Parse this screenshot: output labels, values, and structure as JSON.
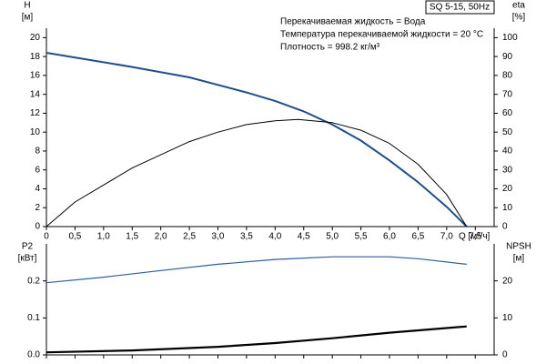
{
  "chart_data": [
    {
      "type": "line",
      "title": "SQ 5-15, 50Hz",
      "annotations": [
        "Перекачиваемая жидкость = Вода",
        "Температура перекачиваемой жидкости = 20 °C",
        "Плотность = 998.2 кг/м³"
      ],
      "ylabel": "H",
      "yunit": "[м]",
      "y2label": "eta",
      "y2unit": "[%]",
      "xlabel": "Q [м³/ч]",
      "xlim": [
        0,
        7.83
      ],
      "xticks": [
        0,
        {
          "value": 0.5,
          "label": "0,5"
        },
        {
          "value": 1,
          "label": "1,0"
        },
        {
          "value": 1.5,
          "label": "1,5"
        },
        {
          "value": 2,
          "label": "2,0"
        },
        {
          "value": 2.5,
          "label": "2,5"
        },
        {
          "value": 3,
          "label": "3,0"
        },
        {
          "value": 3.5,
          "label": "3,5"
        },
        {
          "value": 4,
          "label": "4,0"
        },
        {
          "value": 4.5,
          "label": "4,5"
        },
        {
          "value": 5,
          "label": "5,0"
        },
        {
          "value": 5.5,
          "label": "5,5"
        },
        {
          "value": 6,
          "label": "6,0"
        },
        {
          "value": 6.5,
          "label": "6,5"
        },
        {
          "value": 7,
          "label": "7,0"
        },
        {
          "value": 7.5,
          "label": "7,5"
        }
      ],
      "ylim": [
        0,
        21
      ],
      "yticks": [
        0,
        2,
        4,
        6,
        8,
        10,
        12,
        14,
        16,
        18,
        20
      ],
      "y2lim": [
        0,
        105
      ],
      "y2ticks": [
        0,
        10,
        20,
        30,
        40,
        50,
        60,
        70,
        80,
        90,
        100
      ],
      "series": [
        {
          "color": "#1f4e8c",
          "width": 2,
          "x": [
            0,
            1.5,
            2.5,
            3.5,
            4,
            4.5,
            5,
            5.5,
            6,
            6.5,
            7,
            7.35
          ],
          "values": [
            18.4,
            16.9,
            15.8,
            14.2,
            13.3,
            12.2,
            10.8,
            9.1,
            7.0,
            4.7,
            2.1,
            0
          ]
        },
        {
          "color": "#000000",
          "width": 1,
          "axis": "y2",
          "x": [
            0,
            0.5,
            1,
            1.5,
            2,
            2.5,
            3,
            3.5,
            4,
            4.4,
            5,
            5.5,
            6,
            6.5,
            7,
            7.35
          ],
          "values": [
            0,
            13,
            22,
            31,
            38,
            45,
            50,
            54,
            56,
            56.7,
            55,
            51,
            44,
            33,
            17,
            0
          ]
        }
      ]
    },
    {
      "type": "line",
      "ylabel": "P2",
      "yunit": "[кВт]",
      "y2label": "NPSH",
      "y2unit": "[м]",
      "xlim": [
        0,
        7.83
      ],
      "ylim": [
        0,
        0.3
      ],
      "yticks": [
        {
          "value": 0,
          "label": "0.0"
        },
        0.1,
        0.2
      ],
      "y2lim": [
        0,
        30
      ],
      "y2ticks": [
        0,
        10,
        20
      ],
      "series": [
        {
          "color": "#2a5fa0",
          "width": 1.2,
          "x": [
            0,
            1,
            2,
            3,
            4,
            5,
            6,
            6.5,
            7.35
          ],
          "values": [
            0.195,
            0.21,
            0.228,
            0.245,
            0.258,
            0.265,
            0.265,
            0.26,
            0.245
          ]
        },
        {
          "color": "#000000",
          "width": 2.2,
          "axis": "y2",
          "x": [
            0,
            1.5,
            3,
            4,
            5,
            6,
            7.35
          ],
          "values": [
            0.7,
            1.2,
            2.2,
            3.2,
            4.5,
            6.0,
            7.7
          ]
        }
      ]
    }
  ]
}
